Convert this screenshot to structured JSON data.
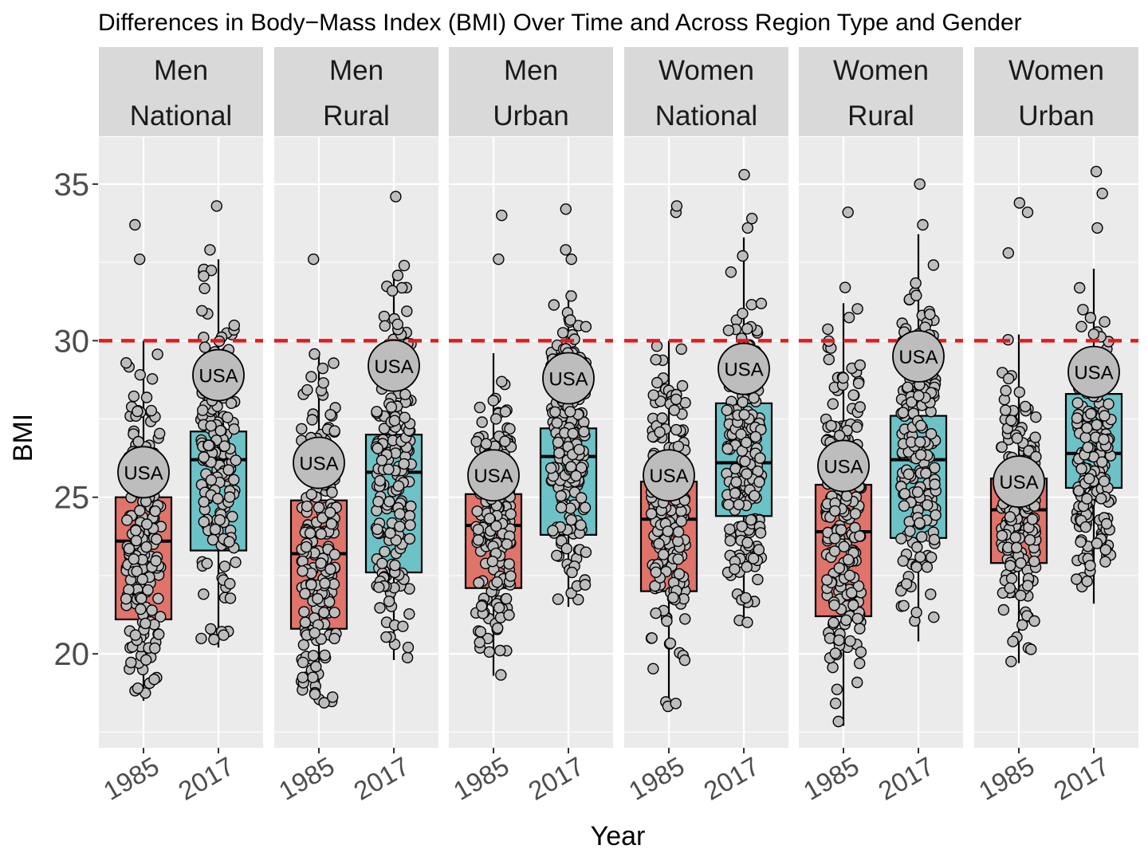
{
  "chart_data": {
    "type": "box",
    "title": "Differences in Body−Mass Index (BMI) Over Time and Across Region Type and Gender",
    "xlabel": "Year",
    "ylabel": "BMI",
    "ylim": [
      17,
      36.5
    ],
    "yticks": [
      20,
      25,
      30,
      35
    ],
    "categories": [
      "1985",
      "2017"
    ],
    "reference_line": {
      "y": 30,
      "color": "#e41a1c",
      "style": "dashed"
    },
    "highlight_label": "USA",
    "colors": {
      "1985": "#e0736a",
      "2017": "#6cc2c6",
      "point": "#bdbdbd",
      "panel_bg": "#ebebeb",
      "strip_bg": "#d9d9d9"
    },
    "panels": [
      {
        "sex": "Men",
        "region": "National",
        "boxes": [
          {
            "year": "1985",
            "q1": 21.1,
            "median": 23.6,
            "q3": 25.0,
            "lower": 18.5,
            "upper": 30.0,
            "usa": 25.8,
            "outliers": [
              32.6,
              33.7
            ]
          },
          {
            "year": "2017",
            "q1": 23.3,
            "median": 26.2,
            "q3": 27.1,
            "lower": 20.2,
            "upper": 32.6,
            "usa": 28.9,
            "outliers": [
              32.9,
              34.3
            ]
          }
        ]
      },
      {
        "sex": "Men",
        "region": "Rural",
        "boxes": [
          {
            "year": "1985",
            "q1": 20.8,
            "median": 23.2,
            "q3": 24.9,
            "lower": 18.4,
            "upper": 29.6,
            "usa": 26.1,
            "outliers": [
              32.6
            ]
          },
          {
            "year": "2017",
            "q1": 22.6,
            "median": 25.8,
            "q3": 27.0,
            "lower": 19.8,
            "upper": 32.2,
            "usa": 29.2,
            "outliers": [
              32.4,
              34.6
            ]
          }
        ]
      },
      {
        "sex": "Men",
        "region": "Urban",
        "boxes": [
          {
            "year": "1985",
            "q1": 22.1,
            "median": 24.1,
            "q3": 25.1,
            "lower": 19.3,
            "upper": 29.6,
            "usa": 25.7,
            "outliers": [
              32.6,
              34.0
            ]
          },
          {
            "year": "2017",
            "q1": 23.8,
            "median": 26.3,
            "q3": 27.2,
            "lower": 21.5,
            "upper": 31.6,
            "usa": 28.8,
            "outliers": [
              32.6,
              32.9,
              34.2
            ]
          }
        ]
      },
      {
        "sex": "Women",
        "region": "National",
        "boxes": [
          {
            "year": "1985",
            "q1": 22.0,
            "median": 24.3,
            "q3": 25.5,
            "lower": 18.2,
            "upper": 30.0,
            "usa": 25.7,
            "outliers": [
              34.1,
              34.3
            ]
          },
          {
            "year": "2017",
            "q1": 24.4,
            "median": 26.1,
            "q3": 28.0,
            "lower": 21.0,
            "upper": 33.3,
            "usa": 29.1,
            "outliers": [
              33.6,
              33.9,
              35.3
            ]
          }
        ]
      },
      {
        "sex": "Women",
        "region": "Rural",
        "boxes": [
          {
            "year": "1985",
            "q1": 21.2,
            "median": 23.9,
            "q3": 25.4,
            "lower": 17.7,
            "upper": 31.2,
            "usa": 26.0,
            "outliers": [
              31.7,
              34.1
            ]
          },
          {
            "year": "2017",
            "q1": 23.7,
            "median": 26.2,
            "q3": 27.6,
            "lower": 20.4,
            "upper": 33.4,
            "usa": 29.5,
            "outliers": [
              33.7,
              35.0
            ]
          }
        ]
      },
      {
        "sex": "Women",
        "region": "Urban",
        "boxes": [
          {
            "year": "1985",
            "q1": 22.9,
            "median": 24.6,
            "q3": 25.6,
            "lower": 19.7,
            "upper": 30.2,
            "usa": 25.5,
            "outliers": [
              32.8,
              34.1,
              34.4
            ]
          },
          {
            "year": "2017",
            "q1": 25.3,
            "median": 26.4,
            "q3": 28.3,
            "lower": 21.6,
            "upper": 32.3,
            "usa": 29.0,
            "outliers": [
              33.6,
              34.7,
              35.4
            ]
          }
        ]
      }
    ]
  }
}
